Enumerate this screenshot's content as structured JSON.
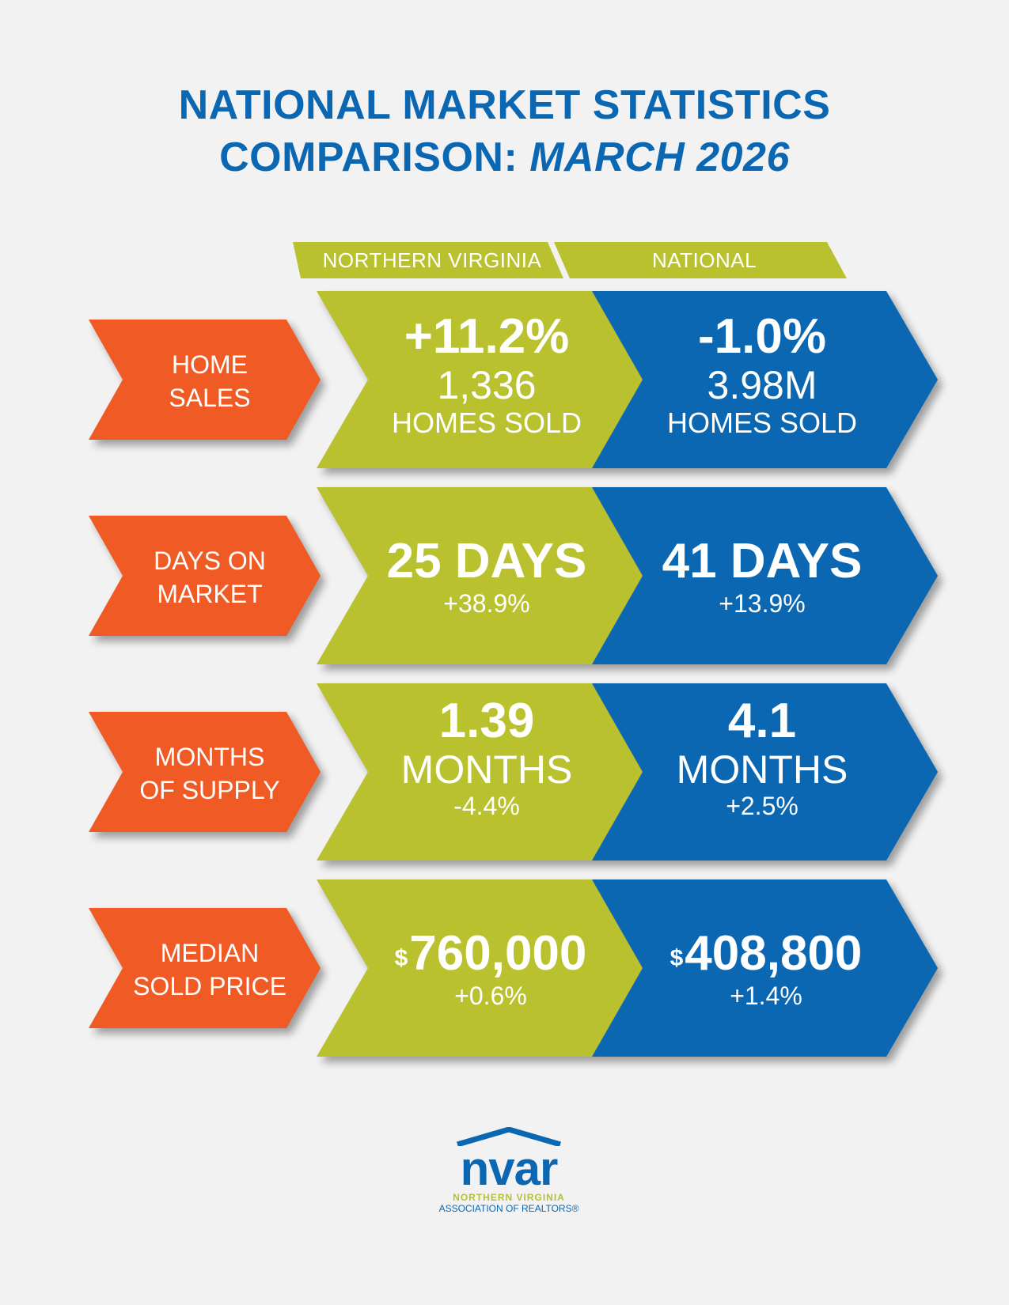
{
  "title": {
    "line1": "NATIONAL MARKET STATISTICS",
    "line2_prefix": "COMPARISON: ",
    "line2_date": "MARCH 2026"
  },
  "columns": {
    "left": "NORTHERN VIRGINIA",
    "right": "NATIONAL"
  },
  "colors": {
    "green": "#b9c22e",
    "blue": "#0b67b2",
    "orange": "#f05a24",
    "background": "#f2f2f2"
  },
  "rows": [
    {
      "label_line1": "HOME",
      "label_line2": "SALES",
      "nova": {
        "main": "+11.2%",
        "line2": "1,336",
        "line3": "HOMES SOLD"
      },
      "national": {
        "main": "-1.0%",
        "line2": "3.98M",
        "line3": "HOMES SOLD"
      }
    },
    {
      "label_line1": "DAYS ON",
      "label_line2": "MARKET",
      "nova": {
        "main": "25 DAYS",
        "line2": "+38.9%"
      },
      "national": {
        "main": "41 DAYS",
        "line2": "+13.9%"
      }
    },
    {
      "label_line1": "MONTHS",
      "label_line2": "OF SUPPLY",
      "nova": {
        "main": "1.39",
        "line2": "MONTHS",
        "line3": "-4.4%"
      },
      "national": {
        "main": "4.1",
        "line2": "MONTHS",
        "line3": "+2.5%"
      }
    },
    {
      "label_line1": "MEDIAN",
      "label_line2": "SOLD PRICE",
      "nova": {
        "currency": "$",
        "main": "760,000",
        "line2": "+0.6%"
      },
      "national": {
        "currency": "$",
        "main": "408,800",
        "line2": "+1.4%"
      }
    }
  ],
  "logo": {
    "word": "nvar",
    "line1": "NORTHERN VIRGINIA",
    "line2": "ASSOCIATION OF REALTORS®",
    "icon": "house-roof-icon"
  }
}
